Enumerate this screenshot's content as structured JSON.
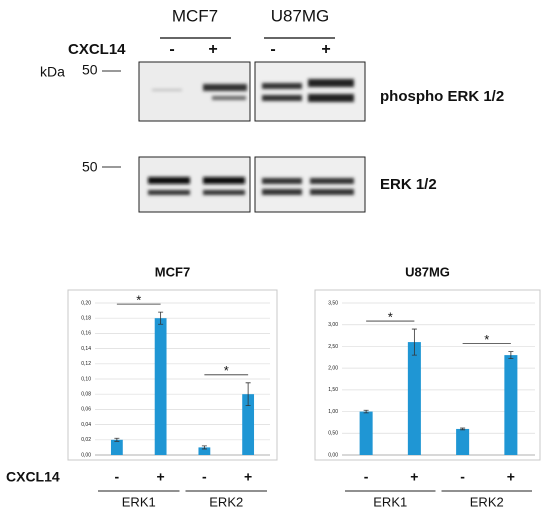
{
  "blot": {
    "columns": [
      "MCF7",
      "U87MG"
    ],
    "treatment_label": "CXCL14",
    "lanes": [
      "-",
      "+",
      "-",
      "+"
    ],
    "unit_label": "kDa",
    "marker_labels": [
      "50",
      "50"
    ],
    "rows": [
      "phospho ERK 1/2",
      "ERK 1/2"
    ]
  },
  "treatment_label": "CXCL14",
  "chart_data": [
    {
      "type": "bar",
      "title": "MCF7",
      "categories": [
        "-",
        "+",
        "-",
        "+"
      ],
      "groups": [
        "ERK1",
        "ERK2"
      ],
      "values": [
        0.02,
        0.18,
        0.01,
        0.08
      ],
      "errors": [
        0.002,
        0.008,
        0.002,
        0.015
      ],
      "color": "#1f96d4",
      "ylim": [
        0,
        0.2
      ],
      "yticks": [
        {
          "value": 0,
          "label": "0,00"
        },
        {
          "value": 0.02,
          "label": "0,02"
        },
        {
          "value": 0.04,
          "label": "0,04"
        },
        {
          "value": 0.06,
          "label": "0,06"
        },
        {
          "value": 0.08,
          "label": "0,08"
        },
        {
          "value": 0.1,
          "label": "0,10"
        },
        {
          "value": 0.12,
          "label": "0,12"
        },
        {
          "value": 0.14,
          "label": "0,14"
        },
        {
          "value": 0.16,
          "label": "0,16"
        },
        {
          "value": 0.18,
          "label": "0,18"
        },
        {
          "value": 0.2,
          "label": "0,20"
        }
      ],
      "grid": true,
      "annotations": [
        "*",
        "*"
      ]
    },
    {
      "type": "bar",
      "title": "U87MG",
      "categories": [
        "-",
        "+",
        "-",
        "+"
      ],
      "groups": [
        "ERK1",
        "ERK2"
      ],
      "values": [
        1.0,
        2.6,
        0.6,
        2.3
      ],
      "errors": [
        0.03,
        0.3,
        0.02,
        0.08
      ],
      "color": "#1f96d4",
      "ylim": [
        0,
        3.5
      ],
      "yticks": [
        {
          "value": 0,
          "label": "0,00"
        },
        {
          "value": 0.5,
          "label": "0,50"
        },
        {
          "value": 1,
          "label": "1,00"
        },
        {
          "value": 1.5,
          "label": "1,50"
        },
        {
          "value": 2,
          "label": "2,00"
        },
        {
          "value": 2.5,
          "label": "2,50"
        },
        {
          "value": 3,
          "label": "3,00"
        },
        {
          "value": 3.5,
          "label": "3,50"
        }
      ],
      "grid": true,
      "annotations": [
        "*",
        "*"
      ]
    }
  ]
}
